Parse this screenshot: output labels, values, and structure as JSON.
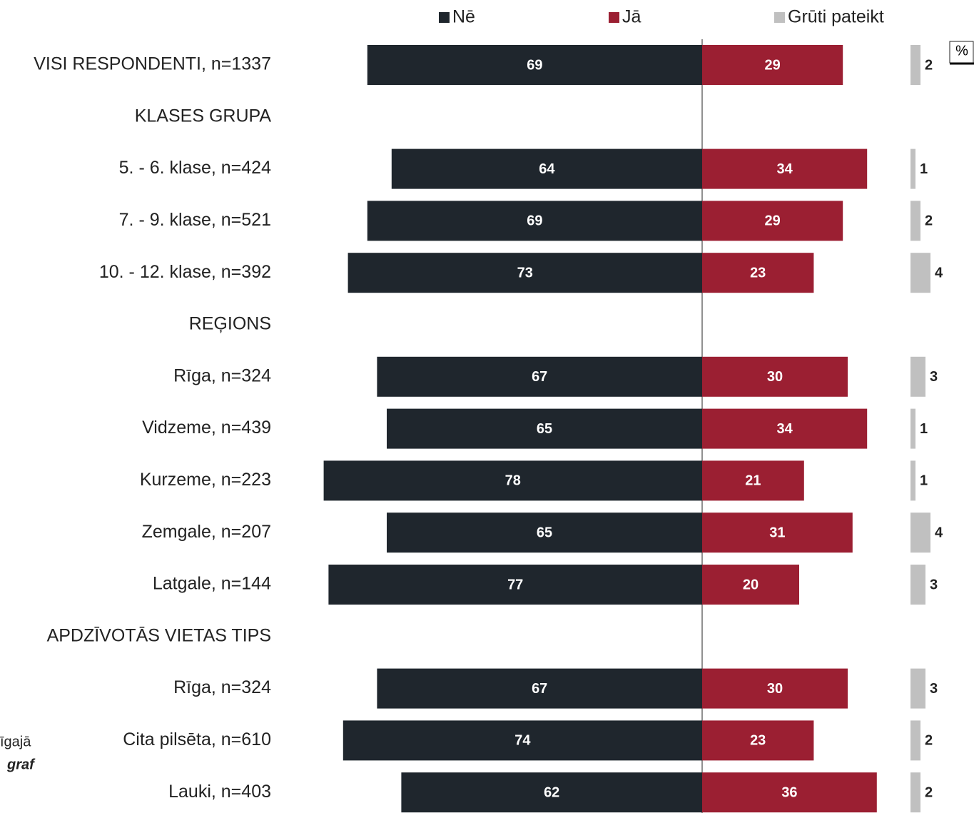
{
  "chart_data": {
    "type": "diverging_bar",
    "unit_label": "%",
    "annotations": [
      "īgajā",
      "graf"
    ],
    "categories": [
      "VISI RESPONDENTI, n=1337",
      "KLASES GRUPA",
      "5. - 6. klase, n=424",
      "7. - 9. klase, n=521",
      "10. - 12. klase, n=392",
      "REĢIONS",
      "Rīga, n=324",
      "Vidzeme, n=439",
      "Kurzeme, n=223",
      "Zemgale, n=207",
      "Latgale, n=144",
      "APDZĪVOTĀS VIETAS TIPS",
      "Rīga, n=324",
      "Cita pilsēta, n=610",
      "Lauki, n=403"
    ],
    "series": [
      {
        "name": "Nē",
        "color": "#1f262d",
        "values": [
          69,
          null,
          64,
          69,
          73,
          null,
          67,
          65,
          78,
          65,
          77,
          null,
          67,
          74,
          62
        ]
      },
      {
        "name": "Jā",
        "color": "#9b1f32",
        "values": [
          29,
          null,
          34,
          29,
          23,
          null,
          30,
          34,
          21,
          31,
          20,
          null,
          30,
          23,
          36
        ]
      },
      {
        "name": "Grūti pateikt",
        "color": "#c0c0c0",
        "values": [
          2,
          null,
          1,
          2,
          4,
          null,
          3,
          1,
          1,
          4,
          3,
          null,
          3,
          2,
          2
        ]
      }
    ]
  }
}
